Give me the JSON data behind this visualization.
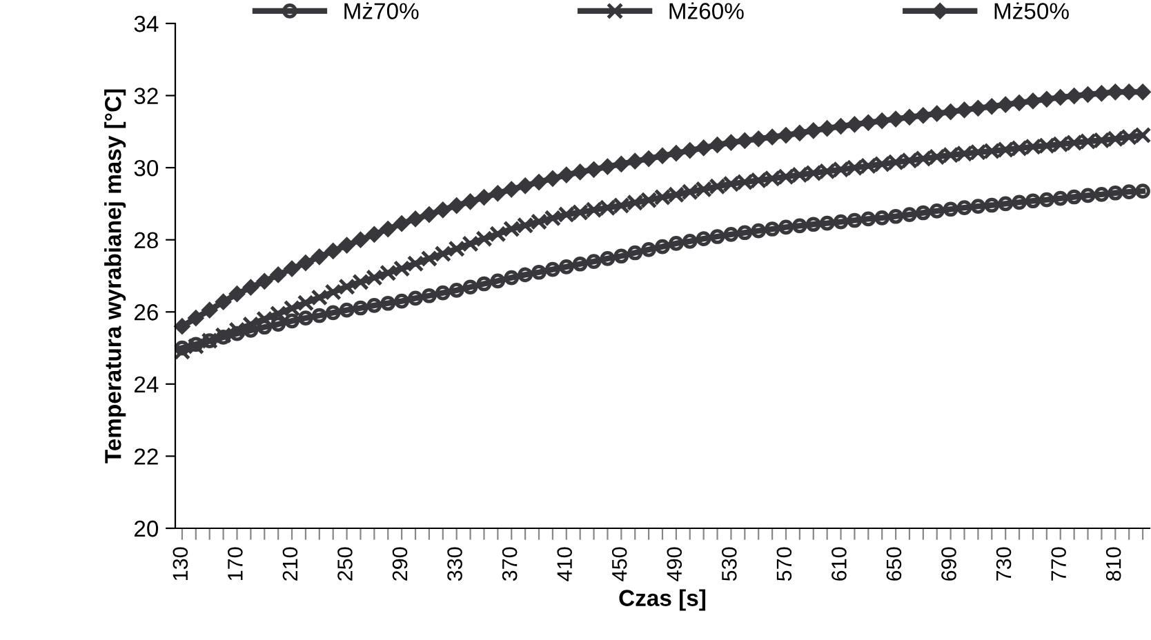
{
  "chart_data": {
    "type": "line",
    "xlabel": "Czas [s]",
    "ylabel": "Temperatura wyrabianej masy [°C]",
    "categories": [
      "130",
      null,
      null,
      null,
      "170",
      null,
      null,
      null,
      "210",
      null,
      null,
      null,
      "250",
      null,
      null,
      null,
      "290",
      null,
      null,
      null,
      "330",
      null,
      null,
      null,
      "370",
      null,
      null,
      null,
      "410",
      null,
      null,
      null,
      "450",
      null,
      null,
      null,
      "490",
      null,
      null,
      null,
      "530",
      null,
      null,
      null,
      "570",
      null,
      null,
      null,
      "610",
      null,
      null,
      null,
      "650",
      null,
      null,
      null,
      "690",
      null,
      null,
      null,
      "730",
      null,
      null,
      null,
      "770",
      null,
      null,
      null,
      "810",
      null,
      null
    ],
    "ylim": [
      20,
      34
    ],
    "yticks": [
      20,
      22,
      24,
      26,
      28,
      30,
      32,
      34
    ],
    "grid": false,
    "legend": "top",
    "series": [
      {
        "name": "Mż70%",
        "color": "#38383c",
        "marker": "circle",
        "values": [
          25.0,
          25.1,
          25.2,
          25.3,
          25.4,
          25.49,
          25.58,
          25.66,
          25.75,
          25.83,
          25.9,
          25.98,
          26.05,
          26.11,
          26.18,
          26.24,
          26.3,
          26.38,
          26.45,
          26.53,
          26.6,
          26.69,
          26.78,
          26.86,
          26.95,
          27.03,
          27.1,
          27.18,
          27.25,
          27.33,
          27.4,
          27.48,
          27.55,
          27.64,
          27.73,
          27.81,
          27.9,
          27.96,
          28.03,
          28.09,
          28.15,
          28.2,
          28.25,
          28.3,
          28.35,
          28.39,
          28.43,
          28.46,
          28.5,
          28.54,
          28.58,
          28.61,
          28.65,
          28.7,
          28.75,
          28.8,
          28.85,
          28.89,
          28.93,
          28.96,
          29.0,
          29.04,
          29.08,
          29.11,
          29.15,
          29.19,
          29.23,
          29.26,
          29.3,
          29.33,
          29.35
        ]
      },
      {
        "name": "Mż60%",
        "color": "#38383c",
        "marker": "cross",
        "values": [
          24.9,
          25.05,
          25.2,
          25.35,
          25.5,
          25.65,
          25.8,
          25.95,
          26.1,
          26.25,
          26.4,
          26.55,
          26.7,
          26.83,
          26.95,
          27.08,
          27.2,
          27.34,
          27.48,
          27.61,
          27.75,
          27.89,
          28.03,
          28.16,
          28.3,
          28.4,
          28.5,
          28.6,
          28.7,
          28.76,
          28.83,
          28.89,
          28.95,
          29.03,
          29.1,
          29.18,
          29.25,
          29.33,
          29.4,
          29.48,
          29.55,
          29.6,
          29.65,
          29.7,
          29.75,
          29.8,
          29.85,
          29.9,
          29.95,
          30.0,
          30.05,
          30.1,
          30.15,
          30.2,
          30.25,
          30.3,
          30.35,
          30.39,
          30.43,
          30.46,
          30.5,
          30.54,
          30.58,
          30.61,
          30.65,
          30.69,
          30.73,
          30.76,
          30.8,
          30.85,
          30.9
        ]
      },
      {
        "name": "Mż50%",
        "color": "#38383c",
        "marker": "diamond",
        "values": [
          25.6,
          25.83,
          26.05,
          26.28,
          26.5,
          26.68,
          26.85,
          27.03,
          27.2,
          27.36,
          27.53,
          27.69,
          27.85,
          28.0,
          28.15,
          28.3,
          28.45,
          28.58,
          28.7,
          28.83,
          28.95,
          29.06,
          29.18,
          29.29,
          29.4,
          29.5,
          29.6,
          29.7,
          29.8,
          29.88,
          29.95,
          30.03,
          30.1,
          30.18,
          30.25,
          30.33,
          30.4,
          30.48,
          30.55,
          30.63,
          30.7,
          30.75,
          30.8,
          30.85,
          30.9,
          30.96,
          31.03,
          31.09,
          31.15,
          31.2,
          31.25,
          31.3,
          31.35,
          31.4,
          31.45,
          31.5,
          31.55,
          31.6,
          31.65,
          31.7,
          31.75,
          31.8,
          31.85,
          31.9,
          31.95,
          31.99,
          32.03,
          32.06,
          32.1,
          32.1,
          32.1
        ]
      }
    ]
  }
}
